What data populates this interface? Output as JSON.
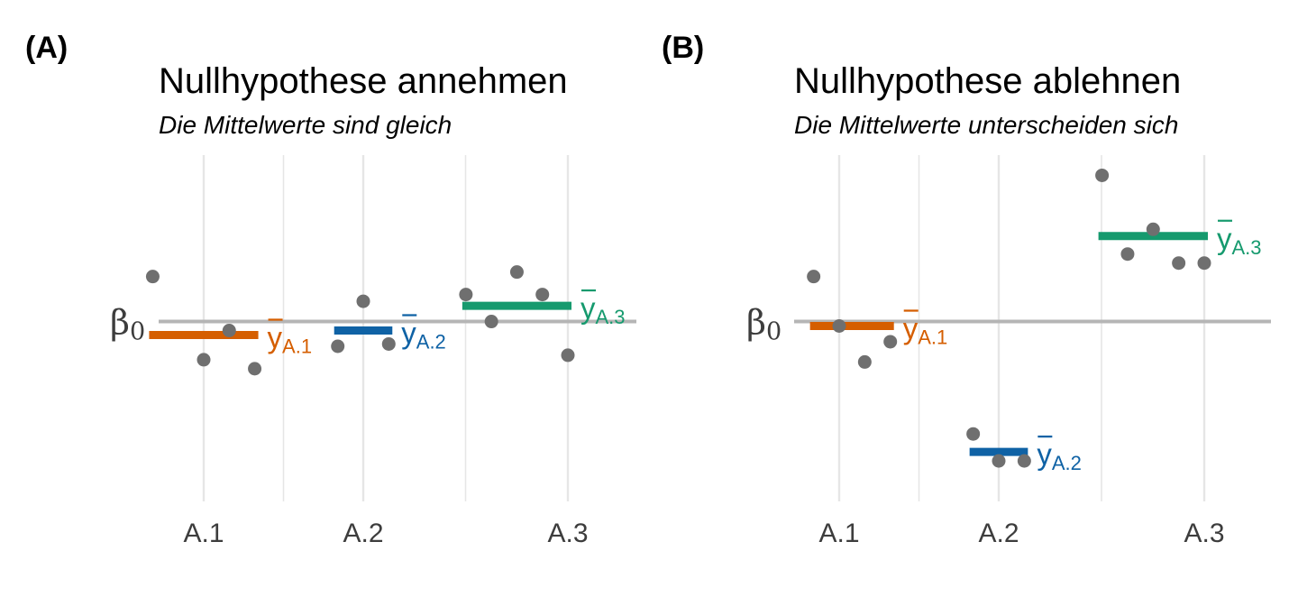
{
  "colors": {
    "A.1": "#D55E00",
    "A.2": "#0F62A5",
    "A.3": "#169A6E",
    "points": "#6f6f6f",
    "reference": "#b5b5b5",
    "grid": "#e6e6e6"
  },
  "reference_label": {
    "symbol": "β",
    "subscript": "0"
  },
  "mean_label": {
    "symbol": "y",
    "prefix": "A."
  },
  "chart_data": [
    {
      "type": "scatter",
      "tag": "(A)",
      "title": "Nullhypothese annehmen",
      "subtitle": "Die Mittelwerte sind gleich",
      "categories": [
        "A.1",
        "A.2",
        "A.3"
      ],
      "ylim": [
        -4.0,
        3.7
      ],
      "reference_value": 0.0,
      "grid": "vertical",
      "legend": "none",
      "groups": [
        {
          "name": "A.1",
          "mean_label": "1",
          "mean": -0.3,
          "points": [
            {
              "x": -0.28,
              "y": 1.0
            },
            {
              "x": 0.0,
              "y": -0.85
            },
            {
              "x": 0.14,
              "y": -0.2
            },
            {
              "x": 0.28,
              "y": -1.05
            }
          ]
        },
        {
          "name": "A.2",
          "mean_label": "2",
          "mean": -0.2,
          "points": [
            {
              "x": -0.14,
              "y": -0.55
            },
            {
              "x": 0.0,
              "y": 0.45
            },
            {
              "x": 0.14,
              "y": -0.5
            }
          ]
        },
        {
          "name": "A.3",
          "mean_label": "3",
          "mean": 0.35,
          "points": [
            {
              "x": -0.56,
              "y": 0.6
            },
            {
              "x": -0.42,
              "y": 0.0
            },
            {
              "x": -0.28,
              "y": 1.1
            },
            {
              "x": -0.14,
              "y": 0.6
            },
            {
              "x": 0.0,
              "y": -0.75
            }
          ]
        }
      ]
    },
    {
      "type": "scatter",
      "tag": "(B)",
      "title": "Nullhypothese ablehnen",
      "subtitle": "Die Mittelwerte unterscheiden sich",
      "categories": [
        "A.1",
        "A.2",
        "A.3"
      ],
      "ylim": [
        -4.0,
        3.7
      ],
      "reference_value": 0.0,
      "grid": "vertical",
      "legend": "none",
      "groups": [
        {
          "name": "A.1",
          "mean_label": "1",
          "mean": -0.1,
          "points": [
            {
              "x": -0.14,
              "y": 1.0
            },
            {
              "x": 0.0,
              "y": -0.1
            },
            {
              "x": 0.14,
              "y": -0.9
            },
            {
              "x": 0.28,
              "y": -0.45
            }
          ]
        },
        {
          "name": "A.2",
          "mean_label": "2",
          "mean": -2.9,
          "points": [
            {
              "x": -0.14,
              "y": -2.5
            },
            {
              "x": 0.0,
              "y": -3.1
            },
            {
              "x": 0.14,
              "y": -3.1
            }
          ]
        },
        {
          "name": "A.3",
          "mean_label": "3",
          "mean": 1.9,
          "points": [
            {
              "x": -0.56,
              "y": 3.25
            },
            {
              "x": -0.42,
              "y": 1.5
            },
            {
              "x": -0.28,
              "y": 2.05
            },
            {
              "x": -0.14,
              "y": 1.3
            },
            {
              "x": 0.0,
              "y": 1.3
            }
          ]
        }
      ]
    }
  ]
}
